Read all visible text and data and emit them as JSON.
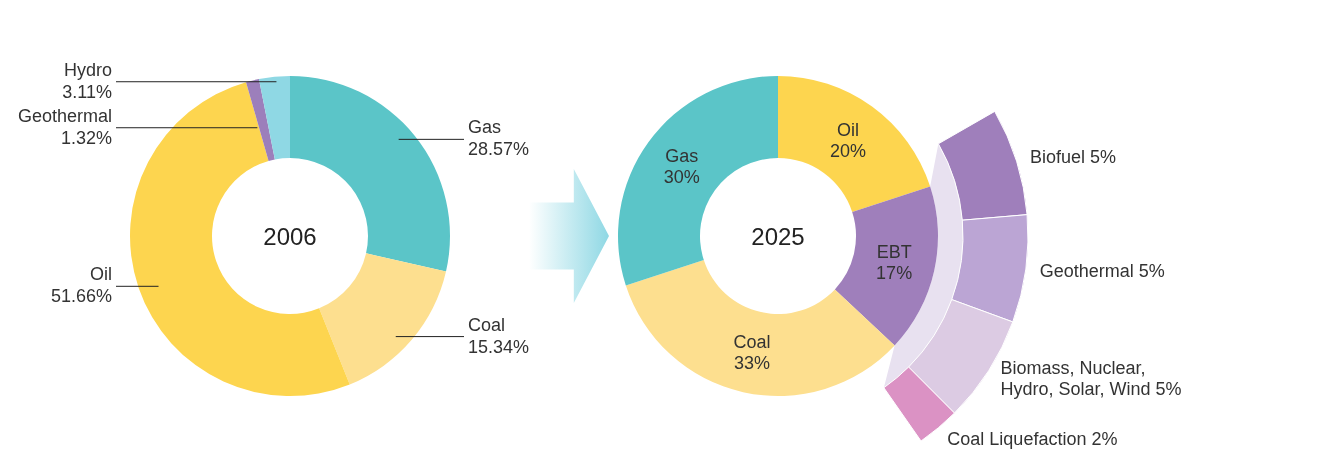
{
  "chart_data": [
    {
      "type": "donut",
      "title": "2006",
      "categories": [
        "Gas",
        "Coal",
        "Oil",
        "Geothermal",
        "Hydro"
      ],
      "values": [
        28.57,
        15.34,
        51.66,
        1.32,
        3.11
      ],
      "value_labels": [
        "28.57%",
        "15.34%",
        "51.66%",
        "1.32%",
        "3.11%"
      ],
      "colors": [
        "#5bc5c8",
        "#fddf8f",
        "#fdd54f",
        "#9c7fbb",
        "#8fd8e4"
      ]
    },
    {
      "type": "donut",
      "title": "2025",
      "categories": [
        "Oil",
        "EBT",
        "Coal",
        "Gas"
      ],
      "values": [
        20,
        17,
        33,
        30
      ],
      "value_labels": [
        "20%",
        "17%",
        "33%",
        "30%"
      ],
      "colors": [
        "#fdd54f",
        "#9f7fbb",
        "#fddf8f",
        "#5bc5c8"
      ]
    },
    {
      "type": "donut",
      "categories": [
        "Biofuel",
        "Geothermal",
        "Biomass, Nuclear, Hydro, Solar, Wind",
        "Coal Liquefaction"
      ],
      "values": [
        5,
        5,
        5,
        2
      ],
      "value_labels": [
        "5%",
        "5%",
        "5%",
        "2%"
      ],
      "colors": [
        "#9f7fbb",
        "#bba5d4",
        "#dccbe3",
        "#db92c4"
      ]
    }
  ]
}
